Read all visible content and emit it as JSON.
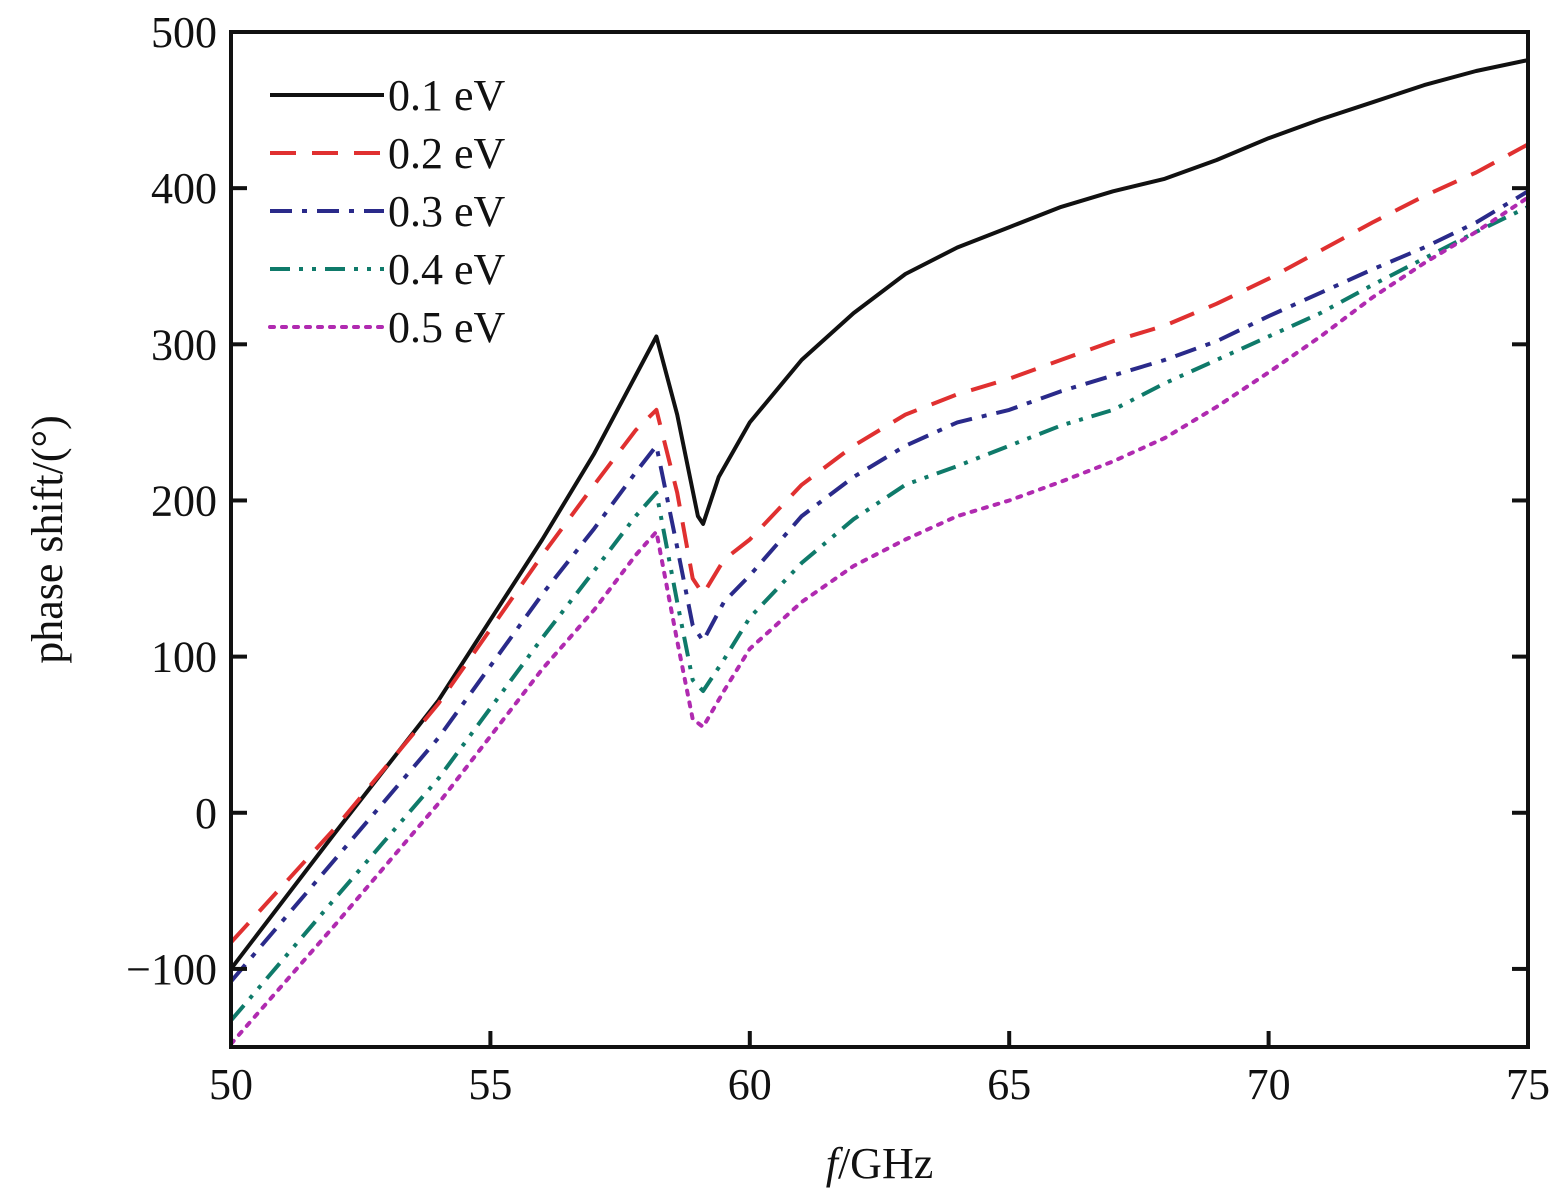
{
  "chart_data": {
    "type": "line",
    "title": "",
    "xlabel_italic": "f",
    "xlabel_rest": "/GHz",
    "ylabel": "phase shift/(°)",
    "xlim": [
      50,
      75
    ],
    "ylim": [
      -150,
      500
    ],
    "xticks": [
      50,
      55,
      60,
      65,
      70,
      75
    ],
    "yticks": [
      -100,
      0,
      100,
      200,
      300,
      400,
      500
    ],
    "xtick_labels": [
      "50",
      "55",
      "60",
      "65",
      "70",
      "75"
    ],
    "ytick_labels": [
      "−100",
      "0",
      "100",
      "200",
      "300",
      "400",
      "500"
    ],
    "grid": false,
    "legend_position": "top-left",
    "series": [
      {
        "name": "0.1 eV",
        "color": "#111111",
        "dash": "solid",
        "points": [
          [
            50,
            -100
          ],
          [
            52,
            -13
          ],
          [
            54,
            72
          ],
          [
            56,
            175
          ],
          [
            57,
            230
          ],
          [
            57.8,
            280
          ],
          [
            58.2,
            305
          ],
          [
            58.6,
            255
          ],
          [
            59,
            190
          ],
          [
            59.1,
            185
          ],
          [
            59.4,
            215
          ],
          [
            60,
            250
          ],
          [
            61,
            290
          ],
          [
            62,
            320
          ],
          [
            63,
            345
          ],
          [
            64,
            362
          ],
          [
            65,
            375
          ],
          [
            66,
            388
          ],
          [
            67,
            398
          ],
          [
            68,
            406
          ],
          [
            69,
            418
          ],
          [
            70,
            432
          ],
          [
            71,
            444
          ],
          [
            72,
            455
          ],
          [
            73,
            466
          ],
          [
            74,
            475
          ],
          [
            75,
            482
          ]
        ]
      },
      {
        "name": "0.2 eV",
        "color": "#e03030",
        "dash": "dashed",
        "points": [
          [
            50,
            -83
          ],
          [
            52,
            -10
          ],
          [
            54,
            70
          ],
          [
            56,
            165
          ],
          [
            57,
            210
          ],
          [
            57.8,
            245
          ],
          [
            58.2,
            258
          ],
          [
            58.6,
            205
          ],
          [
            58.9,
            150
          ],
          [
            59.1,
            140
          ],
          [
            59.5,
            162
          ],
          [
            60,
            175
          ],
          [
            61,
            210
          ],
          [
            62,
            235
          ],
          [
            63,
            255
          ],
          [
            64,
            268
          ],
          [
            65,
            278
          ],
          [
            66,
            290
          ],
          [
            67,
            302
          ],
          [
            68,
            312
          ],
          [
            69,
            326
          ],
          [
            70,
            342
          ],
          [
            71,
            360
          ],
          [
            72,
            378
          ],
          [
            73,
            395
          ],
          [
            74,
            410
          ],
          [
            75,
            428
          ]
        ]
      },
      {
        "name": "0.3 eV",
        "color": "#2a2a8a",
        "dash": "dashdot",
        "points": [
          [
            50,
            -108
          ],
          [
            52,
            -30
          ],
          [
            54,
            48
          ],
          [
            56,
            140
          ],
          [
            57,
            182
          ],
          [
            57.8,
            218
          ],
          [
            58.2,
            235
          ],
          [
            58.6,
            170
          ],
          [
            58.9,
            120
          ],
          [
            59.1,
            110
          ],
          [
            59.5,
            135
          ],
          [
            60,
            152
          ],
          [
            61,
            190
          ],
          [
            62,
            215
          ],
          [
            63,
            235
          ],
          [
            64,
            250
          ],
          [
            65,
            258
          ],
          [
            66,
            270
          ],
          [
            67,
            280
          ],
          [
            68,
            290
          ],
          [
            69,
            302
          ],
          [
            70,
            318
          ],
          [
            71,
            333
          ],
          [
            72,
            348
          ],
          [
            73,
            362
          ],
          [
            74,
            378
          ],
          [
            75,
            398
          ]
        ]
      },
      {
        "name": "0.4 eV",
        "color": "#0f7a6a",
        "dash": "dashdotdot",
        "points": [
          [
            50,
            -133
          ],
          [
            52,
            -55
          ],
          [
            54,
            22
          ],
          [
            56,
            112
          ],
          [
            57,
            155
          ],
          [
            57.8,
            190
          ],
          [
            58.2,
            205
          ],
          [
            58.6,
            135
          ],
          [
            58.9,
            85
          ],
          [
            59.1,
            78
          ],
          [
            59.5,
            98
          ],
          [
            60,
            125
          ],
          [
            61,
            160
          ],
          [
            62,
            188
          ],
          [
            63,
            210
          ],
          [
            64,
            222
          ],
          [
            65,
            235
          ],
          [
            66,
            248
          ],
          [
            67,
            258
          ],
          [
            68,
            275
          ],
          [
            69,
            290
          ],
          [
            70,
            305
          ],
          [
            71,
            320
          ],
          [
            72,
            338
          ],
          [
            73,
            355
          ],
          [
            74,
            372
          ],
          [
            75,
            388
          ]
        ]
      },
      {
        "name": "0.5 eV",
        "color": "#b02ab0",
        "dash": "dotted",
        "points": [
          [
            50,
            -148
          ],
          [
            52,
            -72
          ],
          [
            54,
            6
          ],
          [
            56,
            92
          ],
          [
            57,
            130
          ],
          [
            57.8,
            165
          ],
          [
            58.2,
            180
          ],
          [
            58.6,
            110
          ],
          [
            58.9,
            60
          ],
          [
            59.1,
            55
          ],
          [
            59.5,
            78
          ],
          [
            60,
            105
          ],
          [
            61,
            135
          ],
          [
            62,
            158
          ],
          [
            63,
            175
          ],
          [
            64,
            190
          ],
          [
            65,
            200
          ],
          [
            66,
            212
          ],
          [
            67,
            225
          ],
          [
            68,
            240
          ],
          [
            69,
            260
          ],
          [
            70,
            282
          ],
          [
            71,
            305
          ],
          [
            72,
            330
          ],
          [
            73,
            352
          ],
          [
            74,
            372
          ],
          [
            75,
            394
          ]
        ]
      }
    ]
  }
}
